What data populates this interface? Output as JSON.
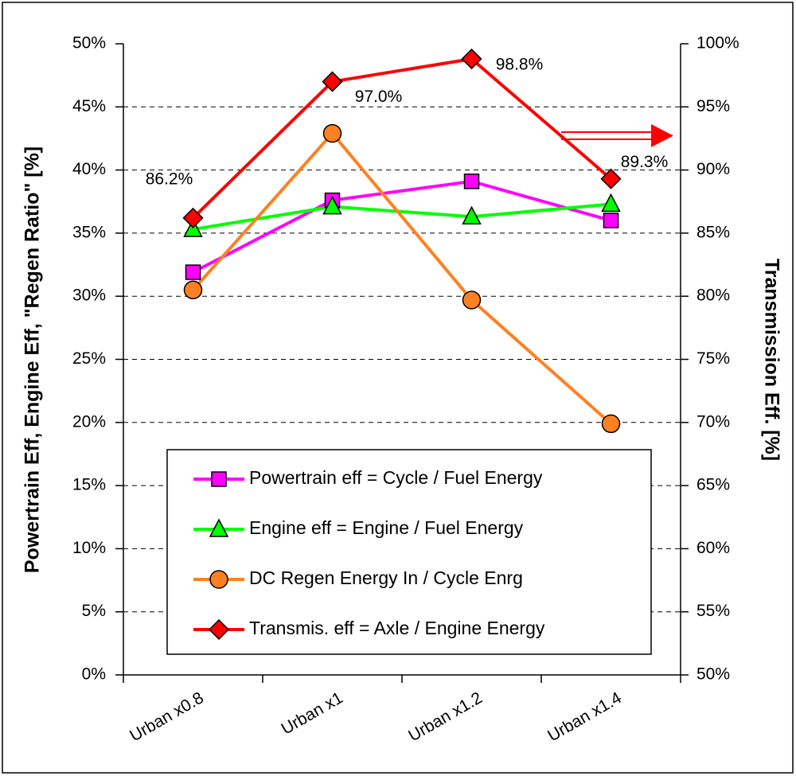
{
  "chart_data": {
    "type": "line",
    "categories": [
      "Urban x0.8",
      "Urban x1",
      "Urban x1.2",
      "Urban x1.4"
    ],
    "ylabel": "Powertrain Eff, Engine Eff, \"Regen Ratio\" [%]",
    "y2label": "Transmission Eff. [%]",
    "ylim": [
      0,
      50
    ],
    "yticks": [
      {
        "value": 0,
        "label": "0%"
      },
      {
        "value": 5,
        "label": "5%"
      },
      {
        "value": 10,
        "label": "10%"
      },
      {
        "value": 15,
        "label": "15%"
      },
      {
        "value": 20,
        "label": "20%"
      },
      {
        "value": 25,
        "label": "25%"
      },
      {
        "value": 30,
        "label": "30%"
      },
      {
        "value": 35,
        "label": "35%"
      },
      {
        "value": 40,
        "label": "40%"
      },
      {
        "value": 45,
        "label": "45%"
      },
      {
        "value": 50,
        "label": "50%"
      }
    ],
    "y2lim": [
      50,
      100
    ],
    "y2ticks": [
      {
        "value": 50,
        "label": "50%"
      },
      {
        "value": 55,
        "label": "55%"
      },
      {
        "value": 60,
        "label": "60%"
      },
      {
        "value": 65,
        "label": "65%"
      },
      {
        "value": 70,
        "label": "70%"
      },
      {
        "value": 75,
        "label": "75%"
      },
      {
        "value": 80,
        "label": "80%"
      },
      {
        "value": 85,
        "label": "85%"
      },
      {
        "value": 90,
        "label": "90%"
      },
      {
        "value": 95,
        "label": "95%"
      },
      {
        "value": 100,
        "label": "100%"
      }
    ],
    "grid": true,
    "series": [
      {
        "name": "Powertrain eff = Cycle / Fuel Energy",
        "color": "#ff00ff",
        "marker": "square",
        "values": [
          31.9,
          37.6,
          39.1,
          36.0
        ]
      },
      {
        "name": "Engine eff = Engine / Fuel Energy",
        "color": "#00ff00",
        "marker": "triangle",
        "values": [
          35.3,
          37.1,
          36.3,
          37.3
        ]
      },
      {
        "name": "DC Regen Energy In / Cycle Enrg",
        "color": "#ff8020",
        "marker": "circle",
        "values": [
          30.5,
          42.9,
          29.7,
          19.9
        ]
      },
      {
        "name": "Transmis. eff = Axle / Engine Energy",
        "color": "#ff0000",
        "marker": "diamond",
        "axis": "y2",
        "values": [
          86.2,
          97.0,
          98.8,
          89.3
        ],
        "value_labels": [
          "86.2%",
          "97.0%",
          "98.8%",
          "89.3%"
        ]
      }
    ]
  }
}
